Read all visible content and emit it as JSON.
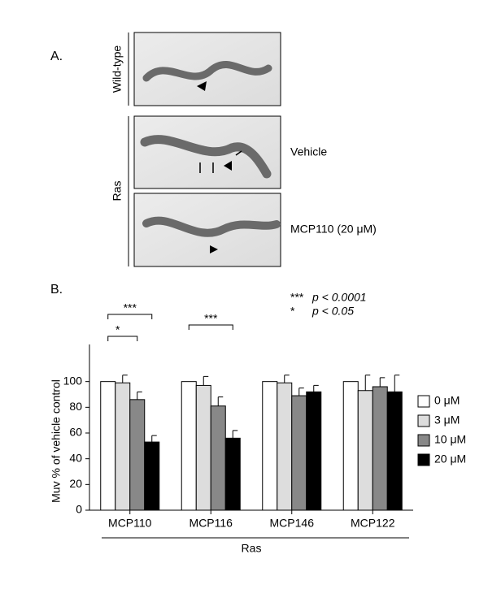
{
  "panel_a": {
    "label": "A.",
    "genotypes": [
      "Wild-type",
      "Ras"
    ],
    "conditions": [
      "Vehicle",
      "MCP110 (20 μM)"
    ]
  },
  "panel_b_label": "B.",
  "chart_data": {
    "type": "bar",
    "categories": [
      "MCP110",
      "MCP116",
      "MCP146",
      "MCP122"
    ],
    "series": [
      {
        "name": "0 μM",
        "color": "#ffffff",
        "values": [
          100,
          100,
          100,
          100
        ]
      },
      {
        "name": "3 μM",
        "color": "#dddddd",
        "values": [
          99,
          97,
          99,
          93
        ],
        "errors": [
          6,
          7,
          6,
          12
        ]
      },
      {
        "name": "10 μM",
        "color": "#888888",
        "values": [
          86,
          81,
          89,
          96
        ],
        "errors": [
          6,
          7,
          6,
          7
        ]
      },
      {
        "name": "20 μM",
        "color": "#000000",
        "values": [
          53,
          56,
          92,
          92
        ],
        "errors": [
          5,
          6,
          5,
          13
        ]
      }
    ],
    "ylabel": "Muv % of vehicle control",
    "group_label": "Ras",
    "ylim": [
      0,
      120
    ],
    "yticks": [
      0,
      20,
      40,
      60,
      80,
      100
    ],
    "significance": [
      {
        "category": 0,
        "from": 0,
        "to": 3,
        "stars": "***"
      },
      {
        "category": 0,
        "from": 0,
        "to": 2,
        "stars": "*"
      },
      {
        "category": 1,
        "from": 0,
        "to": 3,
        "stars": "***"
      }
    ],
    "significance_key": [
      {
        "stars": "***",
        "text": "p < 0.0001"
      },
      {
        "stars": "*",
        "text": "p < 0.05"
      }
    ]
  }
}
